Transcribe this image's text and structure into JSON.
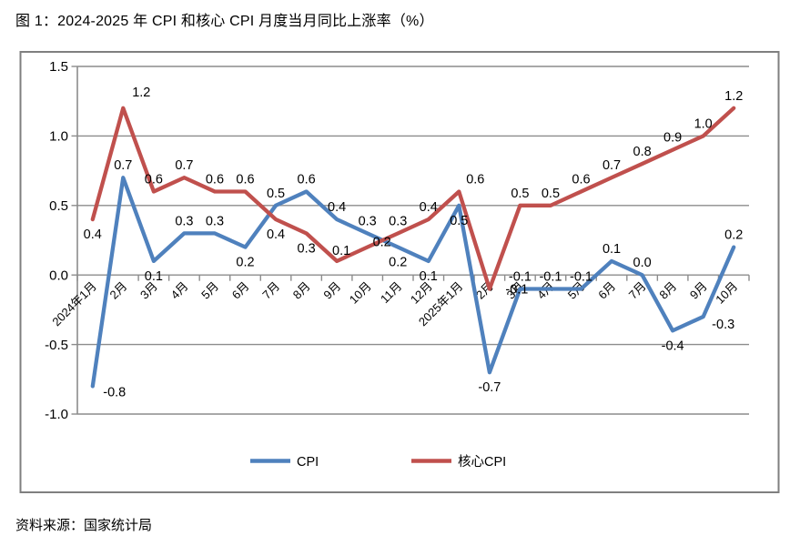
{
  "page": {
    "title": "图 1：2024-2025 年 CPI 和核心 CPI 月度当月同比上涨率（%）",
    "source_text": "资料来源：国家统计局"
  },
  "chart_data": {
    "type": "line",
    "title": "图 1：2024-2025 年 CPI 和核心 CPI 月度当月同比上涨率（%）",
    "categories": [
      "2024年1月",
      "2月",
      "3月",
      "4月",
      "5月",
      "6月",
      "7月",
      "8月",
      "9月",
      "10月",
      "11月",
      "12月",
      "2025年1月",
      "2月",
      "3月",
      "4月",
      "5月",
      "6月",
      "7月",
      "8月",
      "9月",
      "10月"
    ],
    "series": [
      {
        "id": "cpi",
        "name": "CPI",
        "color": "#4F81BD",
        "values": [
          -0.8,
          0.7,
          0.1,
          0.3,
          0.3,
          0.2,
          0.5,
          0.6,
          0.4,
          0.3,
          0.2,
          0.1,
          0.5,
          -0.7,
          -0.1,
          -0.1,
          -0.1,
          0.1,
          0.0,
          -0.4,
          -0.3,
          0.2
        ]
      },
      {
        "id": "core-cpi",
        "name": "核心CPI",
        "color": "#C0504D",
        "values": [
          0.4,
          1.2,
          0.6,
          0.7,
          0.6,
          0.6,
          0.4,
          0.3,
          0.1,
          0.2,
          0.3,
          0.4,
          0.6,
          -0.1,
          0.5,
          0.5,
          0.6,
          0.7,
          0.8,
          0.9,
          1.0,
          1.2
        ]
      }
    ],
    "ylim": [
      -1.0,
      1.5
    ],
    "ytick_labels": [
      "1.5",
      "1.0",
      "0.5",
      "0.0",
      "-0.5",
      "-1.0"
    ],
    "grid": true,
    "data_labels": true,
    "legend_position": "bottom-inside",
    "xlabel": "",
    "ylabel": "",
    "colors": {
      "frame": "#7F7F7F",
      "grid": "#8C8C8C",
      "text": "#000000"
    }
  }
}
